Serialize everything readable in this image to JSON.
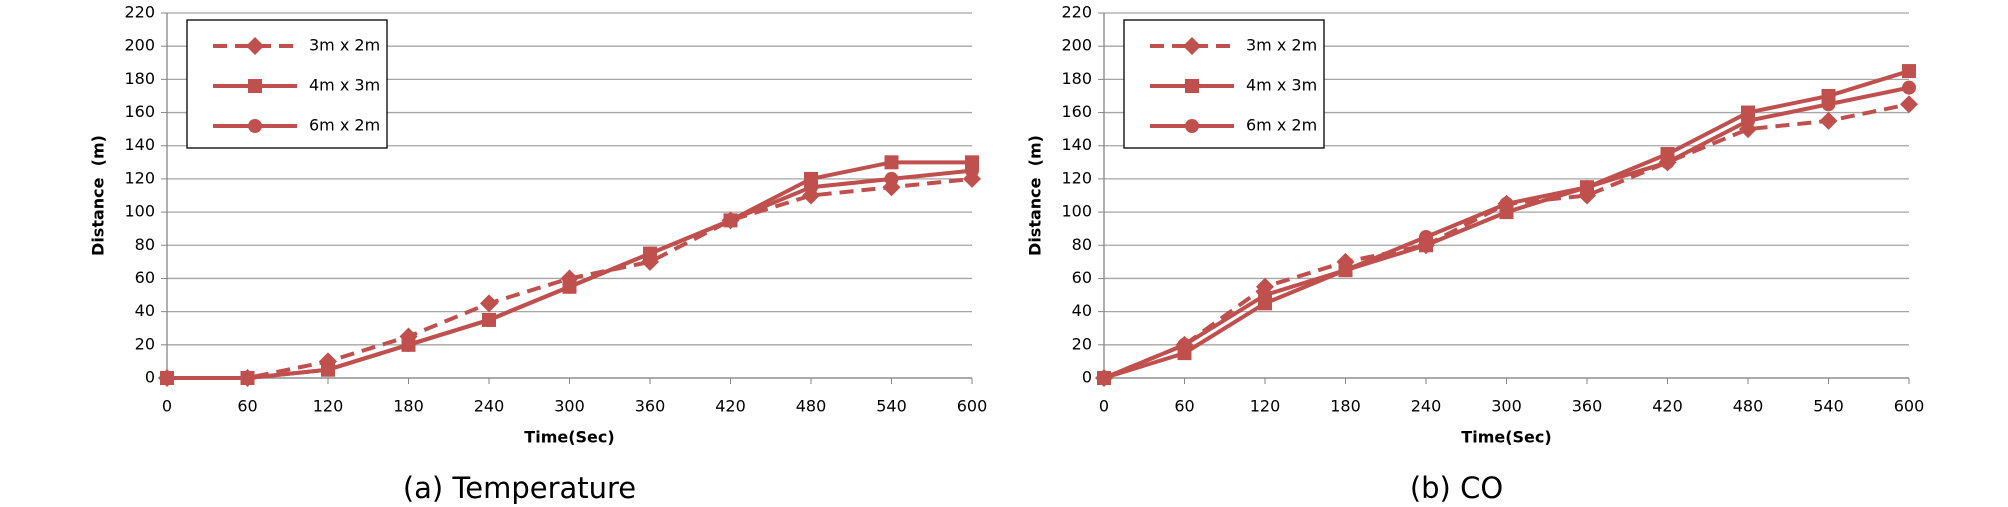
{
  "chart_data": [
    {
      "type": "line",
      "caption": "(a) Temperature",
      "x_label": "Time(Sec)",
      "y_label": "Distance  (m)",
      "x": [
        0,
        60,
        120,
        180,
        240,
        300,
        360,
        420,
        480,
        540,
        600
      ],
      "xlim": [
        0,
        600
      ],
      "xticks": [
        0,
        60,
        120,
        180,
        240,
        300,
        360,
        420,
        480,
        540,
        600
      ],
      "ylim": [
        0,
        220
      ],
      "yticks": [
        0,
        20,
        40,
        60,
        80,
        100,
        120,
        140,
        160,
        180,
        200,
        220
      ],
      "grid": true,
      "legend": "upper left",
      "series": [
        {
          "name": "3m x 2m",
          "color": "#c0504d",
          "marker": "diamond",
          "line_style": "dashed",
          "values": [
            0,
            0,
            10,
            25,
            45,
            60,
            70,
            95,
            110,
            115,
            120
          ]
        },
        {
          "name": "4m x 3m",
          "color": "#c0504d",
          "marker": "square",
          "line_style": "solid",
          "values": [
            0,
            0,
            5,
            20,
            35,
            55,
            75,
            95,
            120,
            130,
            130
          ]
        },
        {
          "name": "6m x 2m",
          "color": "#c0504d",
          "marker": "circle",
          "line_style": "solid",
          "values": [
            0,
            0,
            5,
            20,
            35,
            55,
            75,
            95,
            115,
            120,
            125
          ]
        }
      ]
    },
    {
      "type": "line",
      "caption": "(b) CO",
      "x_label": "Time(Sec)",
      "y_label": "Distance  (m)",
      "x": [
        0,
        60,
        120,
        180,
        240,
        300,
        360,
        420,
        480,
        540,
        600
      ],
      "xlim": [
        0,
        600
      ],
      "xticks": [
        0,
        60,
        120,
        180,
        240,
        300,
        360,
        420,
        480,
        540,
        600
      ],
      "ylim": [
        0,
        220
      ],
      "yticks": [
        0,
        20,
        40,
        60,
        80,
        100,
        120,
        140,
        160,
        180,
        200,
        220
      ],
      "grid": true,
      "legend": "upper left",
      "series": [
        {
          "name": "3m x 2m",
          "color": "#c0504d",
          "marker": "diamond",
          "line_style": "dashed",
          "values": [
            0,
            20,
            55,
            70,
            80,
            105,
            110,
            130,
            150,
            155,
            165
          ]
        },
        {
          "name": "4m x 3m",
          "color": "#c0504d",
          "marker": "square",
          "line_style": "solid",
          "values": [
            0,
            15,
            45,
            65,
            80,
            100,
            115,
            135,
            160,
            170,
            185
          ]
        },
        {
          "name": "6m x 2m",
          "color": "#c0504d",
          "marker": "circle",
          "line_style": "solid",
          "values": [
            0,
            20,
            50,
            65,
            85,
            105,
            115,
            130,
            155,
            165,
            175
          ]
        }
      ]
    }
  ]
}
